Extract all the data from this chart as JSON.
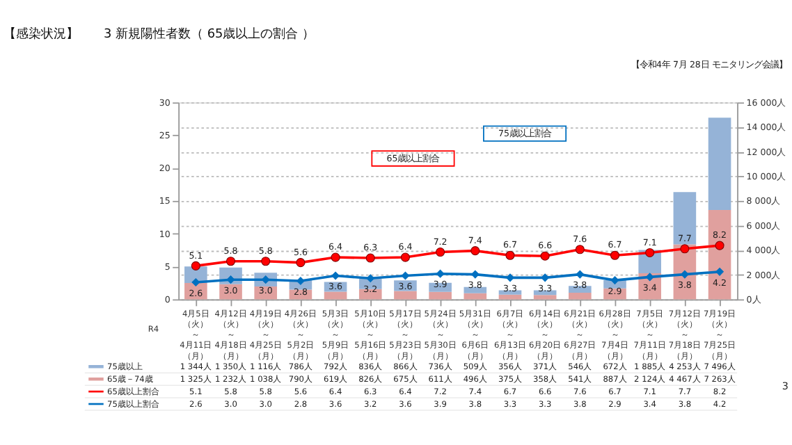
{
  "chart_data": {
    "type": "bar",
    "title": "【感染状況】　　3 新規陽性者数（ 65歳以上の割合 ）",
    "xlabel": "R4",
    "categories": [
      "4月5日（火）～4月11日（月）",
      "4月12日（火）～4月18日（月）",
      "4月19日（火）～4月25日（月）",
      "4月26日（火）～5月2日（月）",
      "5月3日（火）～5月9日（月）",
      "5月10日（火）～5月16日（月）",
      "5月17日（火）～5月23日（月）",
      "5月24日（火）～5月30日（月）",
      "5月31日（火）～6月6日（月）",
      "6月7日（火）～6月13日（月）",
      "6月14日（火）～6月20日（月）",
      "6月21日（火）～6月27日（月）",
      "6月28日（火）～7月4日（月）",
      "7月5日（火）～7月11日（月）",
      "7月12日（火）～7月18日（月）",
      "7月19日（火）～7月25日（月）"
    ],
    "stacked": true,
    "legend": "bottom",
    "grid": true,
    "series": [
      {
        "name": "65歳－74歳",
        "type": "bar",
        "axis": "y2",
        "color": "#e0a09e",
        "values": [
          1325,
          1232,
          1038,
          790,
          619,
          826,
          675,
          611,
          496,
          375,
          358,
          541,
          887,
          2124,
          4467,
          7263
        ],
        "value_labels": [
          "1 325人",
          "1 232人",
          "1 038人",
          "790人",
          "619人",
          "826人",
          "675人",
          "611人",
          "496人",
          "375人",
          "358人",
          "541人",
          "887人",
          "2 124人",
          "4 467人",
          "7 263人"
        ]
      },
      {
        "name": "75歳以上",
        "type": "bar",
        "axis": "y2",
        "color": "#95b3d7",
        "values": [
          1344,
          1350,
          1116,
          786,
          792,
          836,
          866,
          736,
          509,
          356,
          371,
          546,
          672,
          1885,
          4253,
          7496
        ],
        "value_labels": [
          "1 344人",
          "1 350人",
          "1 116人",
          "786人",
          "792人",
          "836人",
          "866人",
          "736人",
          "509人",
          "356人",
          "371人",
          "546人",
          "672人",
          "1 885人",
          "4 253人",
          "7 496人"
        ]
      },
      {
        "name": "65歳以上割合",
        "type": "line",
        "color": "#ff0000",
        "marker": "circle",
        "values": [
          5.1,
          5.8,
          5.8,
          5.6,
          6.4,
          6.3,
          6.4,
          7.2,
          7.4,
          6.7,
          6.6,
          7.6,
          6.7,
          7.1,
          7.7,
          8.2
        ],
        "value_labels": [
          "5.1",
          "5.8",
          "5.8",
          "5.6",
          "6.4",
          "6.3",
          "6.4",
          "7.2",
          "7.4",
          "6.7",
          "6.6",
          "7.6",
          "6.7",
          "7.1",
          "7.7",
          "8.2"
        ]
      },
      {
        "name": "75歳以上割合",
        "type": "line",
        "color": "#0070c0",
        "marker": "diamond",
        "values": [
          2.6,
          3.0,
          3.0,
          2.8,
          3.6,
          3.2,
          3.6,
          3.9,
          3.8,
          3.3,
          3.3,
          3.8,
          2.9,
          3.4,
          3.8,
          4.2
        ],
        "value_labels": [
          "2.6",
          "3.0",
          "3.0",
          "2.8",
          "3.6",
          "3.2",
          "3.6",
          "3.9",
          "3.8",
          "3.3",
          "3.3",
          "3.8",
          "2.9",
          "3.4",
          "3.8",
          "4.2"
        ]
      }
    ],
    "ylim": [
      0,
      30
    ],
    "yticks": [
      0,
      5,
      10,
      15,
      20,
      25,
      30
    ],
    "y2lim": [
      0,
      16000
    ],
    "y2ticks": [
      {
        "value": 0,
        "label": "0人"
      },
      {
        "value": 2000,
        "label": "2 000人"
      },
      {
        "value": 4000,
        "label": "4 000人"
      },
      {
        "value": 6000,
        "label": "6 000人"
      },
      {
        "value": 8000,
        "label": "8 000人"
      },
      {
        "value": 10000,
        "label": "10 000人"
      },
      {
        "value": 12000,
        "label": "12 000人"
      },
      {
        "value": 14000,
        "label": "14 000人"
      },
      {
        "value": 16000,
        "label": "16 000人"
      }
    ],
    "annotations": [
      "【令和4年 7月 28日 モニタリング会議】",
      "65歳以上割合",
      "75歳以上割合",
      "3",
      {
        "text": "5.1",
        "x": "4月5日（火）～4月11日（月）",
        "y": 5.1
      },
      {
        "text": "5.8",
        "x": "4月12日（火）～4月18日（月）",
        "y": 5.8
      },
      {
        "text": "5.8",
        "x": "4月19日（火）～4月25日（月）",
        "y": 5.8
      },
      {
        "text": "5.6",
        "x": "4月26日（火）～5月2日（月）",
        "y": 5.6
      },
      {
        "text": "6.4",
        "x": "5月3日（火）～5月9日（月）",
        "y": 6.4
      },
      {
        "text": "6.3",
        "x": "5月10日（火）～5月16日（月）",
        "y": 6.3
      },
      {
        "text": "6.4",
        "x": "5月17日（火）～5月23日（月）",
        "y": 6.4
      },
      {
        "text": "7.2",
        "x": "5月24日（火）～5月30日（月）",
        "y": 7.2
      },
      {
        "text": "7.4",
        "x": "5月31日（火）～6月6日（月）",
        "y": 7.4
      },
      {
        "text": "6.7",
        "x": "6月7日（火）～6月13日（月）",
        "y": 6.7
      },
      {
        "text": "6.6",
        "x": "6月14日（火）～6月20日（月）",
        "y": 6.6
      },
      {
        "text": "7.6",
        "x": "6月21日（火）～6月27日（月）",
        "y": 7.6
      },
      {
        "text": "6.7",
        "x": "6月28日（火）～7月4日（月）",
        "y": 6.7
      },
      {
        "text": "7.1",
        "x": "7月5日（火）～7月11日（月）",
        "y": 7.1
      },
      {
        "text": "7.7",
        "x": "7月12日（火）～7月18日（月）",
        "y": 7.7
      },
      {
        "text": "8.2",
        "x": "7月19日（火）～7月25日（月）",
        "y": 8.2
      },
      {
        "text": "2.6",
        "x": "4月5日（火）～4月11日（月）",
        "y": 2.6
      },
      {
        "text": "3.0",
        "x": "4月12日（火）～4月18日（月）",
        "y": 3.0
      },
      {
        "text": "3.0",
        "x": "4月19日（火）～4月25日（月）",
        "y": 3.0
      },
      {
        "text": "2.8",
        "x": "4月26日（火）～5月2日（月）",
        "y": 2.8
      },
      {
        "text": "3.6",
        "x": "5月3日（火）～5月9日（月）",
        "y": 3.6
      },
      {
        "text": "3.2",
        "x": "5月10日（火）～5月16日（月）",
        "y": 3.2
      },
      {
        "text": "3.6",
        "x": "5月17日（火）～5月23日（月）",
        "y": 3.6
      },
      {
        "text": "3.9",
        "x": "5月24日（火）～5月30日（月）",
        "y": 3.9
      },
      {
        "text": "3.8",
        "x": "5月31日（火）～6月6日（月）",
        "y": 3.8
      },
      {
        "text": "3.3",
        "x": "6月7日（火）～6月13日（月）",
        "y": 3.3
      },
      {
        "text": "3.3",
        "x": "6月14日（火）～6月20日（月）",
        "y": 3.3
      },
      {
        "text": "3.8",
        "x": "6月21日（火）～6月27日（月）",
        "y": 3.8
      },
      {
        "text": "2.9",
        "x": "6月28日（火）～7月4日（月）",
        "y": 2.9
      },
      {
        "text": "3.4",
        "x": "7月5日（火）～7月11日（月）",
        "y": 3.4
      },
      {
        "text": "3.8",
        "x": "7月12日（火）～7月18日（月）",
        "y": 3.8
      },
      {
        "text": "4.2",
        "x": "7月19日（火）～7月25日（月）",
        "y": 4.2
      }
    ]
  }
}
